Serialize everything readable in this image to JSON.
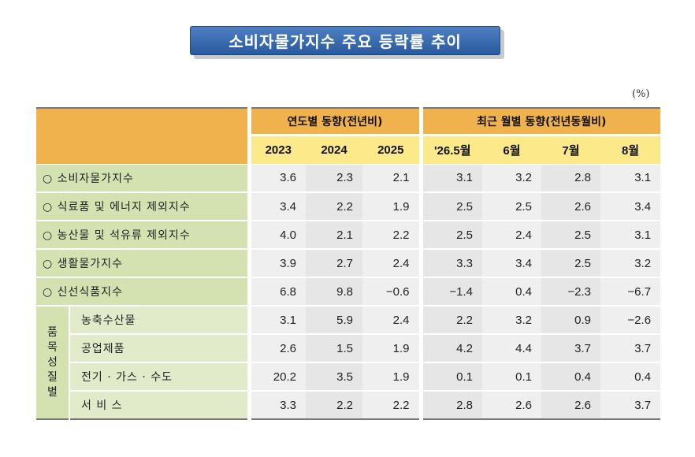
{
  "title": "소비자물가지수 주요 등락률 추이",
  "unit": "(%)",
  "header": {
    "group_annual": "연도별 동향(전년비)",
    "group_monthly": "최근 월별 동향(전년동월비)",
    "columns": [
      "2023",
      "2024",
      "2025",
      "'26.5월",
      "6월",
      "7월",
      "8월"
    ]
  },
  "group_label": [
    "품",
    "목",
    "성",
    "질",
    "별"
  ],
  "rows": [
    {
      "label": "○ 소비자물가지수",
      "values": [
        "3.6",
        "2.3",
        "2.1",
        "3.1",
        "3.2",
        "2.8",
        "3.1"
      ]
    },
    {
      "label": "○ 식료품 및 에너지 제외지수",
      "values": [
        "3.4",
        "2.2",
        "1.9",
        "2.5",
        "2.5",
        "2.6",
        "3.4"
      ]
    },
    {
      "label": "○ 농산물 및 석유류 제외지수",
      "values": [
        "4.0",
        "2.1",
        "2.2",
        "2.5",
        "2.4",
        "2.5",
        "3.1"
      ]
    },
    {
      "label": "○ 생활물가지수",
      "values": [
        "3.9",
        "2.7",
        "2.4",
        "3.3",
        "3.4",
        "2.5",
        "3.2"
      ]
    },
    {
      "label": "○ 신선식품지수",
      "values": [
        "6.8",
        "9.8",
        "−0.6",
        "−1.4",
        "0.4",
        "−2.3",
        "−6.7"
      ]
    }
  ],
  "sub_rows": [
    {
      "label": "농축수산물",
      "values": [
        "3.1",
        "5.9",
        "2.4",
        "2.2",
        "3.2",
        "0.9",
        "−2.6"
      ]
    },
    {
      "label": "공업제품",
      "values": [
        "2.6",
        "1.5",
        "1.9",
        "4.2",
        "4.4",
        "3.7",
        "3.7"
      ]
    },
    {
      "label": "전기 · 가스 · 수도",
      "values": [
        "20.2",
        "3.5",
        "1.9",
        "0.1",
        "0.1",
        "0.4",
        "0.4"
      ]
    },
    {
      "label": "서 비 스",
      "values": [
        "3.3",
        "2.2",
        "2.2",
        "2.8",
        "2.6",
        "2.6",
        "3.7"
      ]
    }
  ]
}
